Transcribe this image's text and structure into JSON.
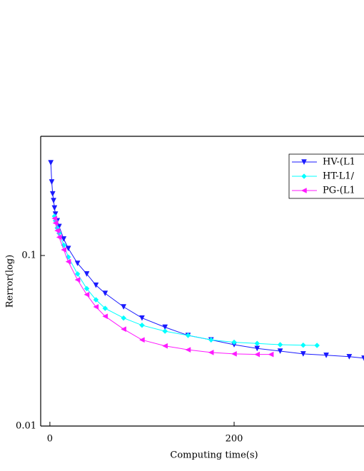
{
  "chart_data": {
    "type": "line",
    "xlabel": "Computing time(s)",
    "ylabel": "Rerror(log)",
    "xlim": [
      -10,
      341
    ],
    "xticks": [
      0,
      200
    ],
    "ylim": [
      0.01,
      0.5
    ],
    "yticks": [
      0.01,
      0.1
    ],
    "ylog": true,
    "legend": "upper right",
    "series": [
      {
        "name": "HV-(L1",
        "color": "#1a1aff",
        "marker": "v",
        "x": [
          1,
          2,
          3,
          4,
          5,
          6,
          8,
          10,
          15,
          20,
          30,
          40,
          50,
          60,
          80,
          100,
          125,
          150,
          175,
          200,
          225,
          250,
          275,
          300,
          325,
          341
        ],
        "values": [
          0.35,
          0.27,
          0.23,
          0.21,
          0.19,
          0.175,
          0.16,
          0.148,
          0.125,
          0.11,
          0.09,
          0.078,
          0.067,
          0.06,
          0.05,
          0.043,
          0.038,
          0.034,
          0.032,
          0.03,
          0.0285,
          0.0275,
          0.0265,
          0.026,
          0.0255,
          0.025
        ]
      },
      {
        "name": "HT-L1/",
        "color": "#00ffff",
        "marker": "d",
        "x": [
          5,
          6,
          8,
          10,
          15,
          20,
          30,
          40,
          50,
          60,
          80,
          100,
          125,
          150,
          175,
          200,
          225,
          250,
          275,
          290
        ],
        "values": [
          0.17,
          0.16,
          0.145,
          0.135,
          0.115,
          0.098,
          0.078,
          0.064,
          0.055,
          0.049,
          0.043,
          0.039,
          0.036,
          0.034,
          0.032,
          0.031,
          0.0305,
          0.03,
          0.0298,
          0.0297
        ]
      },
      {
        "name": "PG-(L1",
        "color": "#ff1aff",
        "marker": "<",
        "x": [
          5,
          6,
          8,
          10,
          15,
          20,
          30,
          40,
          50,
          60,
          80,
          100,
          125,
          150,
          175,
          200,
          225,
          240
        ],
        "values": [
          0.165,
          0.155,
          0.14,
          0.128,
          0.108,
          0.092,
          0.072,
          0.059,
          0.05,
          0.044,
          0.037,
          0.032,
          0.0295,
          0.028,
          0.027,
          0.0265,
          0.0263,
          0.0263
        ]
      }
    ]
  }
}
